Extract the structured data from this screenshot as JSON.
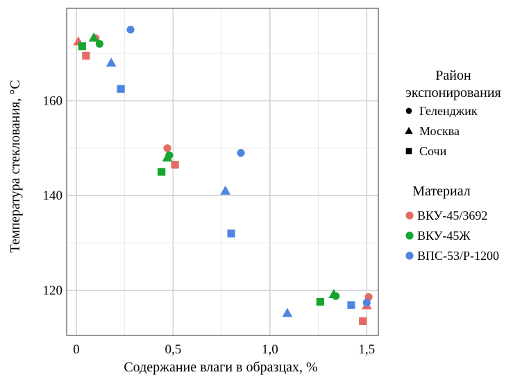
{
  "chart_data": {
    "type": "scatter",
    "xlabel": "Содержание влаги в образцах, %",
    "ylabel": "Температура стеклования, °C",
    "xlim": [
      -0.05,
      1.56
    ],
    "ylim": [
      110.5,
      179.5
    ],
    "x_ticks": [
      0,
      0.5,
      1.0,
      1.5
    ],
    "x_tick_labels": [
      "0",
      "0,5",
      "1,0",
      "1,5"
    ],
    "y_ticks": [
      120,
      140,
      160
    ],
    "y_tick_labels": [
      "120",
      "140",
      "160"
    ],
    "grid": true,
    "legend_placement": "right",
    "legend_shape": {
      "title": "Район экспонирования",
      "title_lines": [
        "Район",
        "экспонирования"
      ],
      "entries": [
        {
          "label": "Геленджик",
          "marker": "circle"
        },
        {
          "label": "Москва",
          "marker": "triangle"
        },
        {
          "label": "Сочи",
          "marker": "square"
        }
      ]
    },
    "legend_material": {
      "title": "Материал",
      "entries": [
        {
          "label": "ВКУ-45/3692",
          "color": "#e36b66"
        },
        {
          "label": "ВКУ-45Ж",
          "color": "#16a52f"
        },
        {
          "label": "ВПС-53/Р-1200",
          "color": "#4f85e1"
        }
      ]
    },
    "points": [
      {
        "x": 0.01,
        "y": 172.5,
        "material": "ВКУ-45/3692",
        "site": "Москва"
      },
      {
        "x": 0.1,
        "y": 173.2,
        "material": "ВКУ-45/3692",
        "site": "Геленджик"
      },
      {
        "x": 0.05,
        "y": 169.5,
        "material": "ВКУ-45/3692",
        "site": "Сочи"
      },
      {
        "x": 0.03,
        "y": 171.5,
        "material": "ВКУ-45Ж",
        "site": "Сочи"
      },
      {
        "x": 0.09,
        "y": 173.3,
        "material": "ВКУ-45Ж",
        "site": "Москва"
      },
      {
        "x": 0.12,
        "y": 172.0,
        "material": "ВКУ-45Ж",
        "site": "Геленджик"
      },
      {
        "x": 0.18,
        "y": 168.0,
        "material": "ВПС-53/Р-1200",
        "site": "Москва"
      },
      {
        "x": 0.23,
        "y": 162.5,
        "material": "ВПС-53/Р-1200",
        "site": "Сочи"
      },
      {
        "x": 0.28,
        "y": 175.0,
        "material": "ВПС-53/Р-1200",
        "site": "Геленджик"
      },
      {
        "x": 0.47,
        "y": 150.0,
        "material": "ВКУ-45/3692",
        "site": "Геленджик"
      },
      {
        "x": 0.51,
        "y": 146.5,
        "material": "ВКУ-45/3692",
        "site": "Сочи"
      },
      {
        "x": 0.47,
        "y": 148.0,
        "material": "ВКУ-45Ж",
        "site": "Москва"
      },
      {
        "x": 0.48,
        "y": 148.5,
        "material": "ВКУ-45Ж",
        "site": "Геленджик"
      },
      {
        "x": 0.44,
        "y": 145.0,
        "material": "ВКУ-45Ж",
        "site": "Сочи"
      },
      {
        "x": 0.77,
        "y": 141.0,
        "material": "ВПС-53/Р-1200",
        "site": "Москва"
      },
      {
        "x": 0.8,
        "y": 132.0,
        "material": "ВПС-53/Р-1200",
        "site": "Сочи"
      },
      {
        "x": 0.85,
        "y": 149.0,
        "material": "ВПС-53/Р-1200",
        "site": "Геленджик"
      },
      {
        "x": 1.09,
        "y": 115.2,
        "material": "ВПС-53/Р-1200",
        "site": "Москва"
      },
      {
        "x": 1.26,
        "y": 117.6,
        "material": "ВКУ-45Ж",
        "site": "Сочи"
      },
      {
        "x": 1.33,
        "y": 119.2,
        "material": "ВКУ-45Ж",
        "site": "Москва"
      },
      {
        "x": 1.34,
        "y": 118.8,
        "material": "ВКУ-45Ж",
        "site": "Геленджик"
      },
      {
        "x": 1.42,
        "y": 116.9,
        "material": "ВПС-53/Р-1200",
        "site": "Сочи"
      },
      {
        "x": 1.48,
        "y": 113.5,
        "material": "ВКУ-45/3692",
        "site": "Сочи"
      },
      {
        "x": 1.5,
        "y": 116.8,
        "material": "ВКУ-45/3692",
        "site": "Москва"
      },
      {
        "x": 1.51,
        "y": 118.6,
        "material": "ВКУ-45/3692",
        "site": "Геленджик"
      },
      {
        "x": 1.5,
        "y": 117.4,
        "material": "ВПС-53/Р-1200",
        "site": "Геленджик"
      }
    ]
  }
}
